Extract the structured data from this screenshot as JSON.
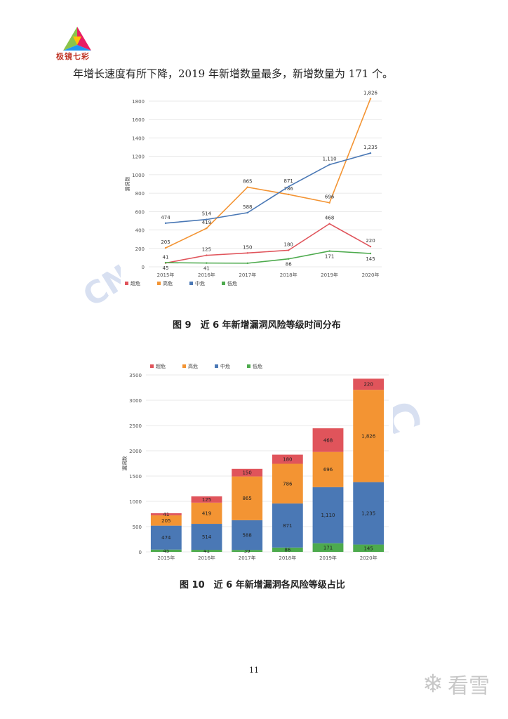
{
  "header": {
    "logo_text": "极镜七彩"
  },
  "paragraph": "年增长速度有所下降，2019 年新增数量最多，新增数量为 171 个。",
  "chart_data": [
    {
      "type": "line",
      "ylabel": "漏洞数",
      "ylim": [
        0,
        1800
      ],
      "yticks": [
        0,
        200,
        400,
        600,
        800,
        1000,
        1200,
        1400,
        1600,
        1800
      ],
      "categories": [
        "2015年",
        "2016年",
        "2017年",
        "2018年",
        "2019年",
        "2020年"
      ],
      "series": [
        {
          "name": "超危",
          "color": "#e0545b",
          "values": [
            41,
            125,
            150,
            180,
            468,
            220
          ]
        },
        {
          "name": "高危",
          "color": "#f39433",
          "values": [
            205,
            419,
            865,
            786,
            696,
            1826
          ]
        },
        {
          "name": "中危",
          "color": "#4a78b5",
          "values": [
            474,
            514,
            588,
            871,
            1110,
            1235
          ]
        },
        {
          "name": "低危",
          "color": "#4daa4d",
          "values": [
            45,
            41,
            39,
            86,
            171,
            145
          ]
        }
      ],
      "data_labels": {
        "超危": [
          "41",
          "125",
          "150",
          "180",
          "468",
          "220"
        ],
        "高危": [
          "205",
          "419",
          "865",
          "786",
          "696",
          "1,826"
        ],
        "中危": [
          "474",
          "514",
          "588",
          "871",
          "1,110",
          "1,235"
        ],
        "低危": [
          "45",
          "41",
          "",
          "86",
          "171",
          "145"
        ]
      },
      "legend_position": "bottom-left",
      "caption": "图 9　近 6 年新增漏洞风险等级时间分布"
    },
    {
      "type": "bar",
      "stacked": true,
      "ylabel": "漏洞数",
      "ylim": [
        0,
        3500
      ],
      "yticks": [
        0,
        500,
        1000,
        1500,
        2000,
        2500,
        3000,
        3500
      ],
      "categories": [
        "2015年",
        "2016年",
        "2017年",
        "2018年",
        "2019年",
        "2020年"
      ],
      "series": [
        {
          "name": "低危",
          "color": "#4daa4d",
          "values": [
            45,
            41,
            39,
            86,
            171,
            145
          ]
        },
        {
          "name": "中危",
          "color": "#4a78b5",
          "values": [
            474,
            514,
            588,
            871,
            1110,
            1235
          ]
        },
        {
          "name": "高危",
          "color": "#f39433",
          "values": [
            205,
            419,
            865,
            786,
            696,
            1826
          ]
        },
        {
          "name": "超危",
          "color": "#e0545b",
          "values": [
            41,
            125,
            150,
            180,
            468,
            220
          ]
        }
      ],
      "data_labels": {
        "低危": [
          "45",
          "41",
          "39",
          "86",
          "171",
          "145"
        ],
        "中危": [
          "474",
          "514",
          "588",
          "871",
          "1,110",
          "1,235"
        ],
        "高危": [
          "205",
          "419",
          "865",
          "786",
          "696",
          "1,826"
        ],
        "超危": [
          "41",
          "125",
          "150",
          "180",
          "468",
          "220"
        ]
      },
      "legend_order": [
        "超危",
        "高危",
        "中危",
        "低危"
      ],
      "legend_position": "top-left",
      "caption": "图 10　近 6 年新增漏洞各风险等级占比"
    }
  ],
  "footer": {
    "page_number": "11",
    "watermark_brand": "看雪"
  }
}
